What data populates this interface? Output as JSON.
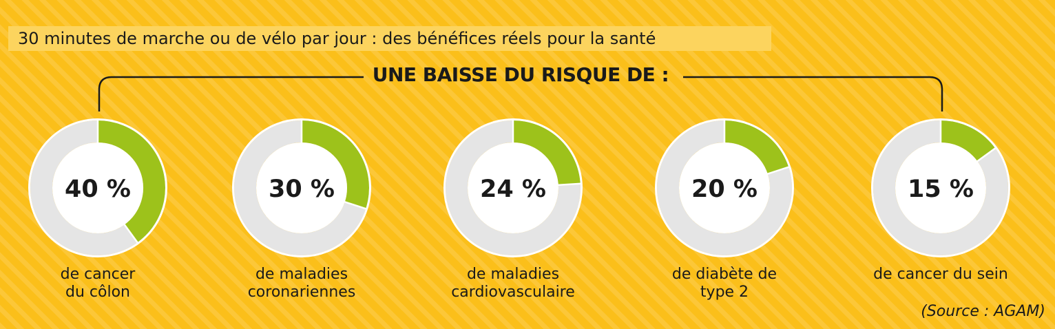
{
  "title": "30 minutes de marche ou de vélo par jour : des bénéfices réels pour la santé",
  "subtitle": "UNE BAISSE DU RISQUE DE :",
  "source": "(Source : AGAM)",
  "colors": {
    "background": "#FBBF1A",
    "accent": "#9DC21B",
    "ring": "#E5E5E5",
    "text": "#1A1A1A"
  },
  "chart_data": {
    "type": "pie",
    "subtype": "donut-progress",
    "max": 100,
    "items": [
      {
        "label": "de cancer\ndu côlon",
        "value": 40,
        "value_label": "40 %"
      },
      {
        "label": "de maladies\ncoronariennes",
        "value": 30,
        "value_label": "30 %"
      },
      {
        "label": "de maladies\ncardiovasculaire",
        "value": 24,
        "value_label": "24 %"
      },
      {
        "label": "de diabète de\ntype 2",
        "value": 20,
        "value_label": "20 %"
      },
      {
        "label": "de cancer du sein",
        "value": 15,
        "value_label": "15 %"
      }
    ]
  }
}
